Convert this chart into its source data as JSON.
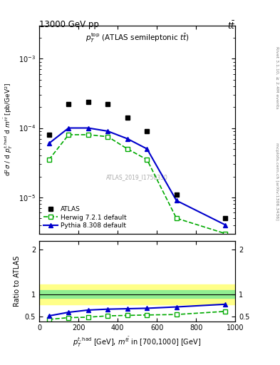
{
  "title_left": "13000 GeV pp",
  "title_right": "tt",
  "annotation": "ATLAS_2019_I1750330",
  "right_label_top": "Rivet 3.1.10, ≥ 2.4M events",
  "right_label_bot": "mcplots.cern.ch [arXiv:1306.3436]",
  "ylabel_main": "d²σ / d p_T^{t,had} d m^{tbar{t}} [pb/GeV²]",
  "ylabel_ratio": "Ratio to ATLAS",
  "xlabel": "p_T^{t,had} [GeV], m^{tbar{t}} in [700,1000] [GeV]",
  "xlim": [
    0,
    1000
  ],
  "ylim_main": [
    3e-06,
    0.003
  ],
  "ylim_ratio": [
    0.4,
    2.2
  ],
  "atlas_x": [
    50,
    150,
    250,
    350,
    450,
    550,
    700,
    950
  ],
  "atlas_y": [
    8e-05,
    0.00022,
    0.00024,
    0.00022,
    0.00014,
    9e-05,
    1.1e-05,
    5e-06
  ],
  "herwig_x": [
    50,
    150,
    250,
    350,
    450,
    550,
    700,
    950
  ],
  "herwig_y": [
    3.5e-05,
    8e-05,
    8e-05,
    7.5e-05,
    5e-05,
    3.5e-05,
    5e-06,
    3e-06
  ],
  "pythia_x": [
    50,
    150,
    250,
    350,
    450,
    550,
    700,
    950
  ],
  "pythia_y": [
    6e-05,
    0.0001,
    0.0001,
    9e-05,
    7e-05,
    5e-05,
    9e-06,
    4e-06
  ],
  "herwig_ratio_x": [
    50,
    150,
    250,
    350,
    450,
    550,
    700,
    950
  ],
  "herwig_ratio_y": [
    0.44,
    0.48,
    0.49,
    0.52,
    0.53,
    0.54,
    0.55,
    0.62
  ],
  "pythia_ratio_x": [
    50,
    150,
    250,
    350,
    450,
    550,
    700,
    950
  ],
  "pythia_ratio_y": [
    0.52,
    0.6,
    0.65,
    0.67,
    0.68,
    0.69,
    0.72,
    0.78
  ],
  "band_green_low": 0.92,
  "band_green_high": 1.1,
  "band_yellow_low": 0.78,
  "band_yellow_high": 1.22,
  "color_atlas": "#000000",
  "color_herwig": "#00aa00",
  "color_pythia": "#0000cc",
  "color_band_green": "#90ee90",
  "color_band_yellow": "#ffff88",
  "atlas_label": "ATLAS",
  "herwig_label": "Herwig 7.2.1 default",
  "pythia_label": "Pythia 8.308 default"
}
